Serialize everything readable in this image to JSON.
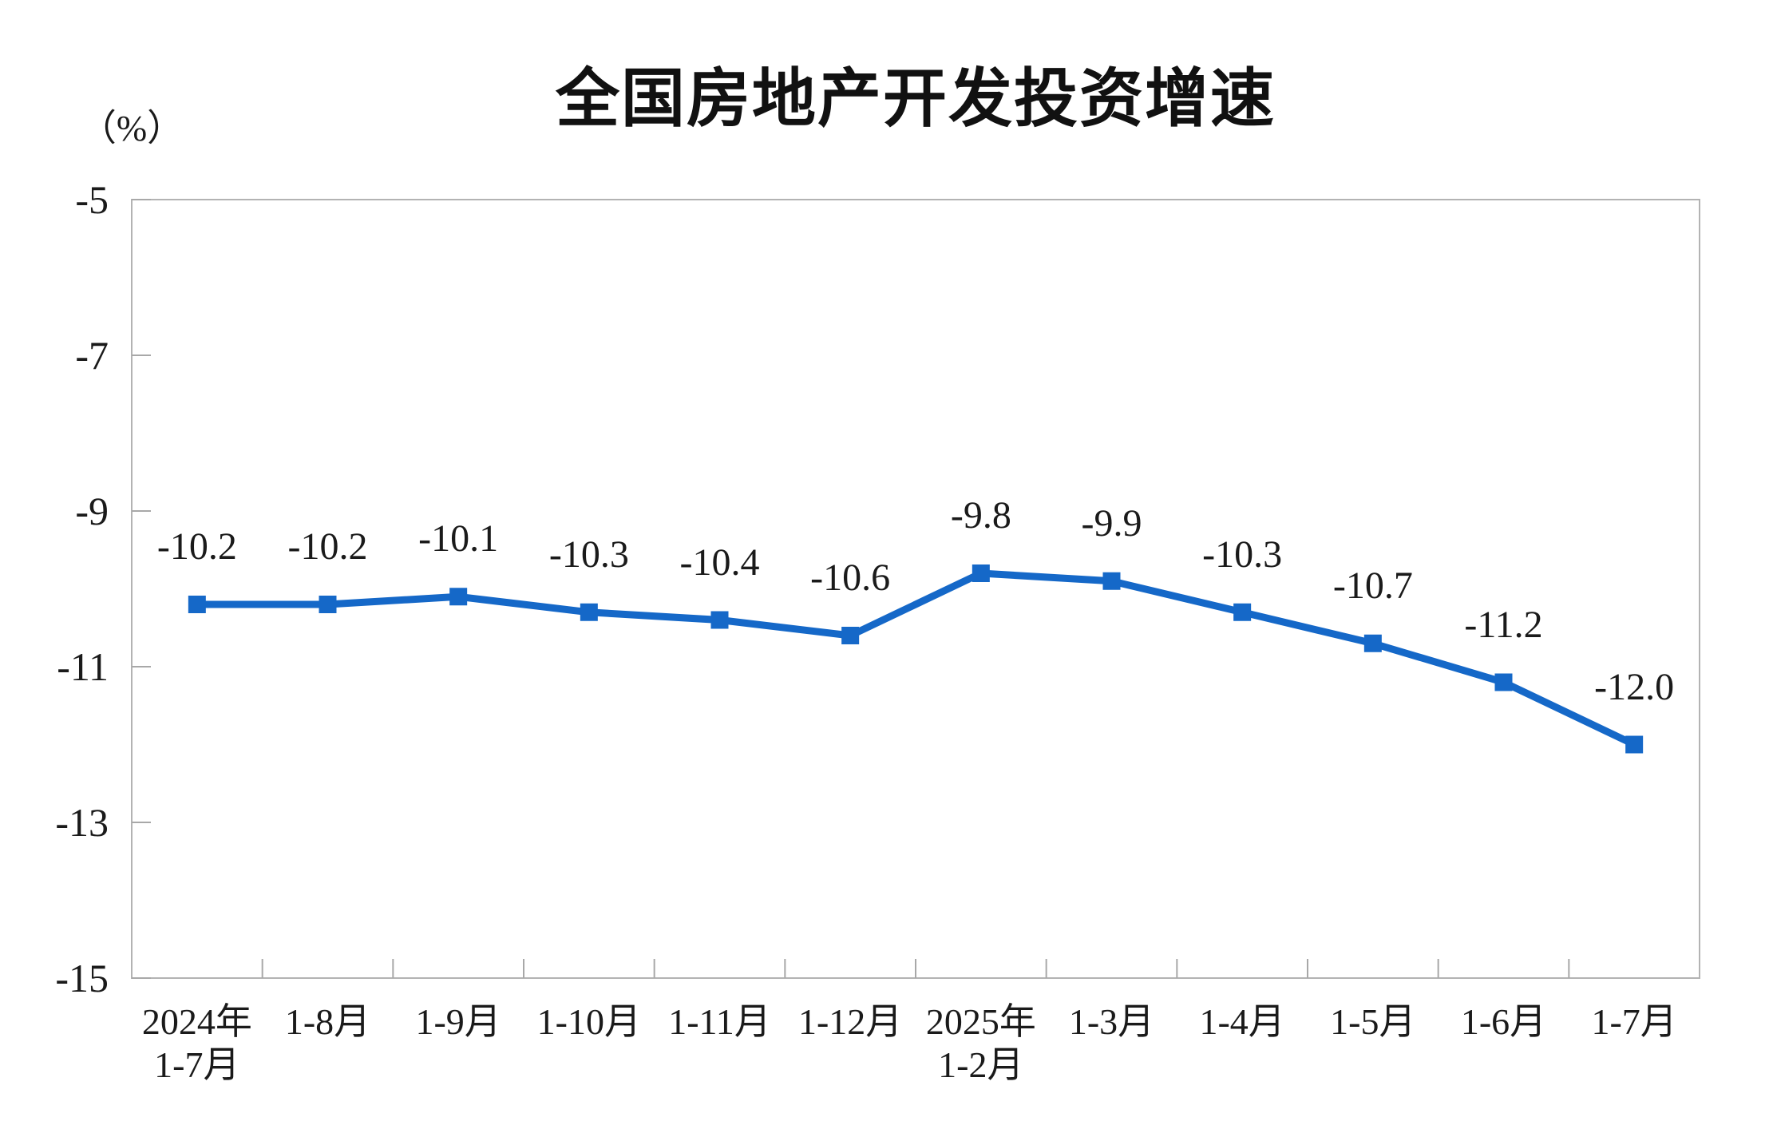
{
  "page": {
    "background": "#ffffff"
  },
  "chart_data": {
    "type": "line",
    "title": "全国房地产开发投资增速",
    "unit_label": "（%）",
    "categories": [
      [
        "2024年",
        "1-7月"
      ],
      [
        "1-8月"
      ],
      [
        "1-9月"
      ],
      [
        "1-10月"
      ],
      [
        "1-11月"
      ],
      [
        "1-12月"
      ],
      [
        "2025年",
        "1-2月"
      ],
      [
        "1-3月"
      ],
      [
        "1-4月"
      ],
      [
        "1-5月"
      ],
      [
        "1-6月"
      ],
      [
        "1-7月"
      ]
    ],
    "series": [
      {
        "name": "全国房地产开发投资增速",
        "values": [
          -10.2,
          -10.2,
          -10.1,
          -10.3,
          -10.4,
          -10.6,
          -9.8,
          -9.9,
          -10.3,
          -10.7,
          -11.2,
          -12.0
        ],
        "color": "#1568C8",
        "marker": "square"
      }
    ],
    "data_labels": [
      "-10.2",
      "-10.2",
      "-10.1",
      "-10.3",
      "-10.4",
      "-10.6",
      "-9.8",
      "-9.9",
      "-10.3",
      "-10.7",
      "-11.2",
      "-12.0"
    ],
    "xlabel": "",
    "ylabel": "（%）",
    "y_axis": {
      "min": -15,
      "max": -5,
      "tick_step": 2,
      "ticks": [
        "-5",
        "-7",
        "-9",
        "-11",
        "-13",
        "-15"
      ]
    },
    "ylim": [
      -15,
      -5
    ],
    "grid": false,
    "legend_position": "none",
    "axis_color": "#b3b3b3",
    "tick_color": "#a8a8a8",
    "text_color": "#1a1a1a"
  }
}
